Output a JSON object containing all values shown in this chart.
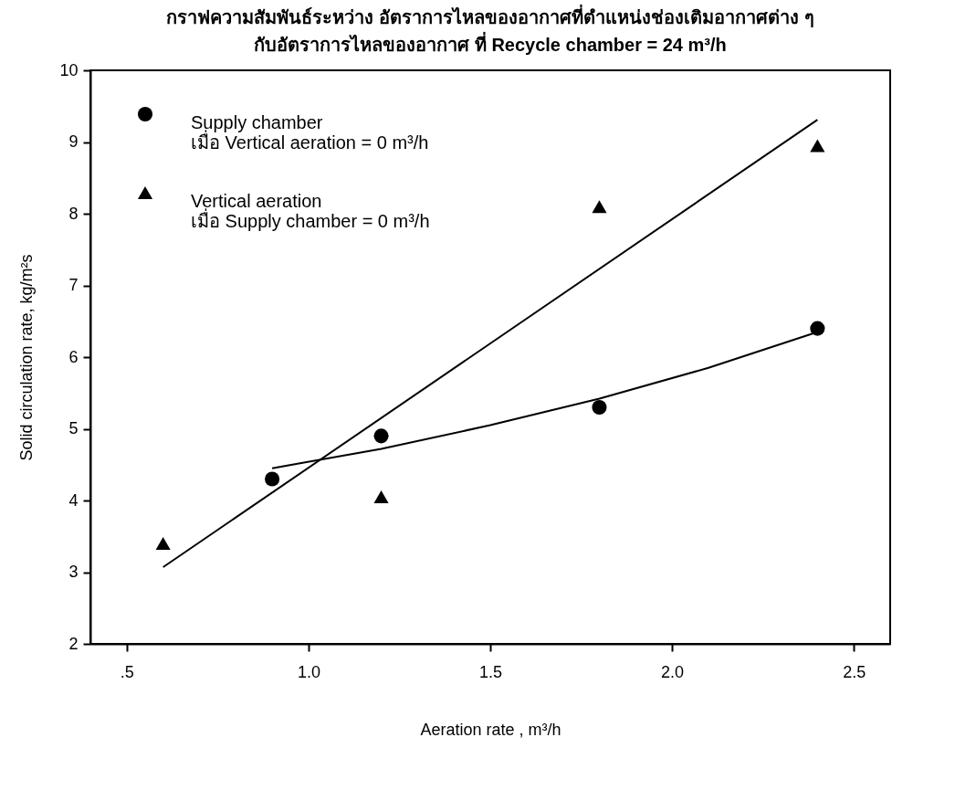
{
  "chart_data": {
    "type": "scatter",
    "title": "กราฟความสัมพันธ์ระหว่าง อัตราการไหลของอากาศที่ตำแหน่งช่องเติมอากาศต่าง ๆ",
    "subtitle": "กับอัตราการไหลของอากาศ ที่ Recycle chamber = 24 m³/h",
    "xlabel": "Aeration rate , m³/h",
    "ylabel": "Solid circulation rate, kg/m²s",
    "series": [
      {
        "name": "Supply chamber\nเมื่อ Vertical aeration = 0 m³/h",
        "color": "#000000",
        "marker": "circle",
        "x": [
          0.9,
          1.2,
          1.8,
          2.4
        ],
        "values": [
          4.3,
          4.9,
          5.3,
          6.4
        ]
      },
      {
        "name": "Vertical aeration\nเมื่อ Supply chamber = 0 m³/h",
        "color": "#000000",
        "marker": "triangle",
        "x": [
          0.6,
          1.2,
          1.8,
          2.4
        ],
        "values": [
          3.4,
          4.05,
          8.1,
          8.95
        ]
      },
      {
        "type": "line",
        "color": "#000000",
        "marker": "none",
        "x": [
          0.9,
          1.2,
          1.5,
          1.8,
          2.1,
          2.4
        ],
        "values": [
          4.45,
          4.72,
          5.05,
          5.42,
          5.85,
          6.35
        ]
      },
      {
        "type": "line",
        "color": "#000000",
        "marker": "none",
        "x": [
          0.6,
          2.4
        ],
        "values": [
          3.07,
          9.31
        ]
      }
    ],
    "xlim": [
      0.4,
      2.6
    ],
    "xticks": [
      {
        "value": 0.5,
        "label": ".5"
      },
      {
        "value": 1.0,
        "label": "1.0"
      },
      {
        "value": 1.5,
        "label": "1.5"
      },
      {
        "value": 2.0,
        "label": "2.0"
      },
      {
        "value": 2.5,
        "label": "2.5"
      }
    ],
    "ylim": [
      2,
      10
    ],
    "yticks": [
      2,
      3,
      4,
      5,
      6,
      7,
      8,
      9,
      10
    ],
    "grid": false,
    "legend": "top left"
  }
}
